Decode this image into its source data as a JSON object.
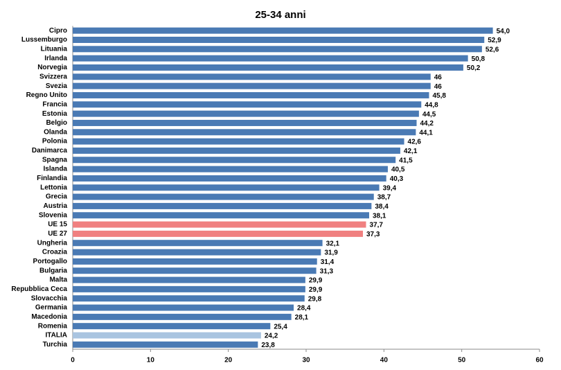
{
  "chart_data": {
    "type": "hbar",
    "title": "25-34 anni",
    "categories": [
      "Cipro",
      "Lussemburgo",
      "Lituania",
      "Irlanda",
      "Norvegia",
      "Svizzera",
      "Svezia",
      "Regno Unito",
      "Francia",
      "Estonia",
      "Belgio",
      "Olanda",
      "Polonia",
      "Danimarca",
      "Spagna",
      "Islanda",
      "Finlandia",
      "Lettonia",
      "Grecia",
      "Austria",
      "Slovenia",
      "UE 15",
      "UE 27",
      "Ungheria",
      "Croazia",
      "Portogallo",
      "Bulgaria",
      "Malta",
      "Repubblica Ceca",
      "Slovacchia",
      "Germania",
      "Macedonia",
      "Romenia",
      "ITALIA",
      "Turchia"
    ],
    "values": [
      54.0,
      52.9,
      52.6,
      50.8,
      50.2,
      46,
      46,
      45.8,
      44.8,
      44.5,
      44.2,
      44.1,
      42.6,
      42.1,
      41.5,
      40.5,
      40.3,
      39.4,
      38.7,
      38.4,
      38.1,
      37.7,
      37.3,
      32.1,
      31.9,
      31.4,
      31.3,
      29.9,
      29.9,
      29.8,
      28.4,
      28.1,
      25.4,
      24.2,
      23.8
    ],
    "value_labels": [
      "54,0",
      "52,9",
      "52,6",
      "50,8",
      "50,2",
      "46",
      "46",
      "45,8",
      "44,8",
      "44,5",
      "44,2",
      "44,1",
      "42,6",
      "42,1",
      "41,5",
      "40,5",
      "40,3",
      "39,4",
      "38,7",
      "38,4",
      "38,1",
      "37,7",
      "37,3",
      "32,1",
      "31,9",
      "31,4",
      "31,3",
      "29,9",
      "29,9",
      "29,8",
      "28,4",
      "28,1",
      "25,4",
      "24,2",
      "23,8"
    ],
    "colors": [
      "#4a7ab4",
      "#4a7ab4",
      "#4a7ab4",
      "#4a7ab4",
      "#4a7ab4",
      "#4a7ab4",
      "#4a7ab4",
      "#4a7ab4",
      "#4a7ab4",
      "#4a7ab4",
      "#4a7ab4",
      "#4a7ab4",
      "#4a7ab4",
      "#4a7ab4",
      "#4a7ab4",
      "#4a7ab4",
      "#4a7ab4",
      "#4a7ab4",
      "#4a7ab4",
      "#4a7ab4",
      "#4a7ab4",
      "#f08080",
      "#f08080",
      "#4a7ab4",
      "#4a7ab4",
      "#4a7ab4",
      "#4a7ab4",
      "#4a7ab4",
      "#4a7ab4",
      "#4a7ab4",
      "#4a7ab4",
      "#4a7ab4",
      "#4a7ab4",
      "#a9c4e0",
      "#4a7ab4"
    ],
    "xlim": [
      0,
      60
    ],
    "xticks": [
      0,
      10,
      20,
      30,
      40,
      50,
      60
    ]
  }
}
